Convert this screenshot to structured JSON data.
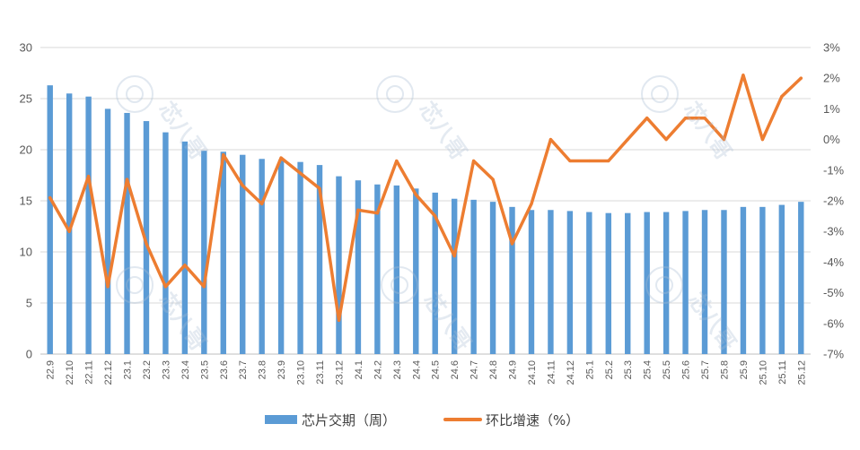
{
  "chart_data": {
    "type": "bar",
    "categories": [
      "22.9",
      "22.10",
      "22.11",
      "22.12",
      "23.1",
      "23.2",
      "23.3",
      "23.4",
      "23.5",
      "23.6",
      "23.7",
      "23.8",
      "23.9",
      "23.10",
      "23.11",
      "23.12",
      "24.1",
      "24.2",
      "24.3",
      "24.4",
      "24.5",
      "24.6",
      "24.7",
      "24.8",
      "24.9",
      "24.10",
      "24.11",
      "24.12",
      "25.1",
      "25.2",
      "25.3",
      "25.4",
      "25.5",
      "25.6",
      "25.7",
      "25.8",
      "25.9",
      "25.10",
      "25.11",
      "25.12"
    ],
    "series": [
      {
        "name": "芯片交期（周）",
        "type": "bar",
        "axis": "left",
        "color": "#5B9BD5",
        "values": [
          26.3,
          25.5,
          25.2,
          24.0,
          23.6,
          22.8,
          21.7,
          20.8,
          19.9,
          19.8,
          19.5,
          19.1,
          19.0,
          18.8,
          18.5,
          17.4,
          17.0,
          16.6,
          16.5,
          16.2,
          15.8,
          15.2,
          15.1,
          14.9,
          14.4,
          14.1,
          14.1,
          14.0,
          13.9,
          13.8,
          13.8,
          13.9,
          13.9,
          14.0,
          14.1,
          14.1,
          14.4,
          14.4,
          14.6,
          14.9
        ]
      },
      {
        "name": "环比增速（%）",
        "type": "line",
        "axis": "right",
        "color": "#ED7D31",
        "values": [
          -1.9,
          -3.0,
          -1.2,
          -4.8,
          -1.3,
          -3.4,
          -4.8,
          -4.1,
          -4.8,
          -0.5,
          -1.5,
          -2.1,
          -0.6,
          -1.1,
          -1.6,
          -5.9,
          -2.3,
          -2.4,
          -0.7,
          -1.8,
          -2.5,
          -3.8,
          -0.7,
          -1.3,
          -3.4,
          -2.1,
          0.0,
          -0.7,
          -0.7,
          -0.7,
          0.0,
          0.7,
          0.0,
          0.7,
          0.7,
          0.0,
          2.1,
          0.0,
          1.4,
          2.0
        ]
      }
    ],
    "ylim": [
      0,
      30
    ],
    "y_ticks": [
      0,
      5,
      10,
      15,
      20,
      25,
      30
    ],
    "y2lim": [
      -7,
      3
    ],
    "y2_ticks": [
      3,
      2,
      1,
      0,
      -1,
      -2,
      -3,
      -4,
      -5,
      -6,
      -7
    ],
    "y2_tick_labels": [
      "3%",
      "2%",
      "1%",
      "0%",
      "-1%",
      "-2%",
      "-3%",
      "-4%",
      "-5%",
      "-6%",
      "-7%"
    ],
    "grid": "horizontal",
    "legend_position": "bottom"
  },
  "watermark": {
    "text": "芯八哥"
  }
}
